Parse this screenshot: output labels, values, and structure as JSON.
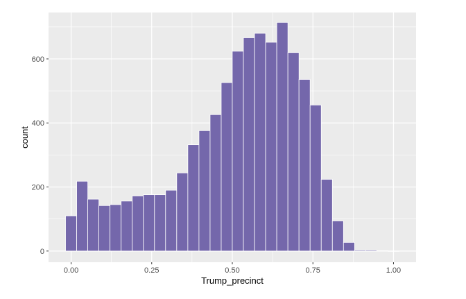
{
  "chart_data": {
    "type": "bar",
    "subtype": "histogram",
    "xlabel": "Trump_precinct",
    "ylabel": "count",
    "xlim": [
      -0.07,
      1.07
    ],
    "ylim": [
      -35,
      745
    ],
    "x_ticks": [
      {
        "value": 0.0,
        "label": "0.00"
      },
      {
        "value": 0.25,
        "label": "0.25"
      },
      {
        "value": 0.5,
        "label": "0.50"
      },
      {
        "value": 0.75,
        "label": "0.75"
      },
      {
        "value": 1.0,
        "label": "1.00"
      }
    ],
    "y_ticks": [
      {
        "value": 0,
        "label": "0"
      },
      {
        "value": 200,
        "label": "200"
      },
      {
        "value": 400,
        "label": "400"
      },
      {
        "value": 600,
        "label": "600"
      }
    ],
    "bin_width": 0.0345,
    "bin_centers": [
      0.0,
      0.0345,
      0.069,
      0.1034,
      0.1379,
      0.1724,
      0.2069,
      0.2414,
      0.2759,
      0.3103,
      0.3448,
      0.3793,
      0.4138,
      0.4483,
      0.4828,
      0.5172,
      0.5517,
      0.5862,
      0.6207,
      0.6552,
      0.6897,
      0.7241,
      0.7586,
      0.7931,
      0.8276,
      0.8621,
      0.8966,
      0.931,
      0.9655,
      1.0
    ],
    "values": [
      110,
      218,
      162,
      142,
      145,
      156,
      172,
      176,
      176,
      190,
      244,
      332,
      376,
      426,
      526,
      624,
      666,
      680,
      652,
      714,
      620,
      536,
      456,
      224,
      94,
      27,
      3,
      3,
      1,
      0
    ],
    "bar_fill": "#7467ab",
    "bar_stroke": "#ffffff",
    "panel_background": "#ebebeb",
    "grid": true,
    "grid_color": "#ffffff"
  }
}
